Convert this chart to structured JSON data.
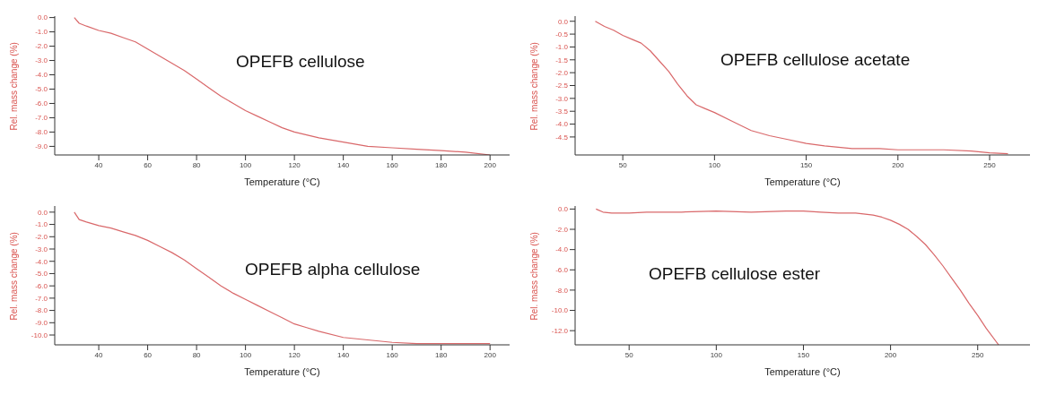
{
  "chart_data": [
    {
      "type": "line",
      "title": "OPEFB cellulose",
      "xlabel": "Temperature (°C)",
      "ylabel": "Rel. mass change (%)",
      "color": "#d9686a",
      "marker": "none",
      "line_style": "solid",
      "grid": false,
      "legend": false,
      "x": [
        30,
        32,
        35,
        40,
        45,
        50,
        55,
        60,
        65,
        70,
        75,
        80,
        85,
        90,
        95,
        100,
        105,
        110,
        115,
        120,
        125,
        130,
        140,
        150,
        160,
        170,
        180,
        190,
        200
      ],
      "values": [
        0,
        -0.4,
        -0.6,
        -0.9,
        -1.1,
        -1.4,
        -1.7,
        -2.2,
        -2.7,
        -3.2,
        -3.7,
        -4.3,
        -4.9,
        -5.5,
        -6.0,
        -6.5,
        -6.9,
        -7.3,
        -7.7,
        -8.0,
        -8.2,
        -8.4,
        -8.7,
        -9.0,
        -9.1,
        -9.2,
        -9.3,
        -9.4,
        -9.6
      ],
      "xlim": [
        22,
        208
      ],
      "xticks": [
        40,
        60,
        80,
        100,
        120,
        140,
        160,
        180,
        200
      ],
      "ylim": [
        -9.6,
        0.1
      ],
      "yticks": [
        {
          "value": 0,
          "label": "0.0"
        },
        {
          "value": -1,
          "label": "-1.0"
        },
        {
          "value": -2,
          "label": "-2.0"
        },
        {
          "value": -3,
          "label": "-3.0"
        },
        {
          "value": -4,
          "label": "-4.0"
        },
        {
          "value": -5,
          "label": "-5.0"
        },
        {
          "value": -6,
          "label": "-6.0"
        },
        {
          "value": -7,
          "label": "-7.0"
        },
        {
          "value": -8,
          "label": "-8.0"
        },
        {
          "value": -9,
          "label": "-9.0"
        }
      ]
    },
    {
      "type": "line",
      "title": "OPEFB cellulose acetate",
      "xlabel": "Temperature (°C)",
      "ylabel": "Rel. mass change (%)",
      "color": "#d9686a",
      "marker": "none",
      "line_style": "solid",
      "grid": false,
      "legend": false,
      "x": [
        35,
        40,
        45,
        50,
        55,
        60,
        65,
        70,
        75,
        80,
        85,
        90,
        95,
        100,
        110,
        120,
        130,
        140,
        150,
        160,
        175,
        190,
        200,
        225,
        240,
        250,
        260
      ],
      "values": [
        0,
        -0.2,
        -0.35,
        -0.55,
        -0.7,
        -0.85,
        -1.15,
        -1.55,
        -1.95,
        -2.45,
        -2.9,
        -3.25,
        -3.4,
        -3.55,
        -3.9,
        -4.25,
        -4.45,
        -4.6,
        -4.75,
        -4.85,
        -4.95,
        -4.95,
        -5.0,
        -5.0,
        -5.05,
        -5.12,
        -5.15
      ],
      "xlim": [
        24,
        272
      ],
      "xticks": [
        50,
        100,
        150,
        200,
        250
      ],
      "ylim": [
        -5.2,
        0.2
      ],
      "yticks": [
        {
          "value": 0,
          "label": "0.0"
        },
        -0.5,
        {
          "value": -1,
          "label": "-1.0"
        },
        -1.5,
        {
          "value": -2,
          "label": "-2.0"
        },
        -2.5,
        {
          "value": -3,
          "label": "-3.0"
        },
        -3.5,
        {
          "value": -4,
          "label": "-4.0"
        },
        -4.5
      ]
    },
    {
      "type": "line",
      "title": "OPEFB alpha cellulose",
      "xlabel": "Temperature (°C)",
      "ylabel": "Rel. mass change (%)",
      "color": "#d9686a",
      "marker": "none",
      "line_style": "solid",
      "grid": false,
      "legend": false,
      "x": [
        30,
        32,
        35,
        40,
        45,
        50,
        55,
        60,
        65,
        70,
        75,
        80,
        85,
        90,
        95,
        100,
        105,
        110,
        115,
        120,
        125,
        130,
        140,
        150,
        160,
        170,
        180,
        200
      ],
      "values": [
        0,
        -0.6,
        -0.8,
        -1.1,
        -1.3,
        -1.6,
        -1.9,
        -2.3,
        -2.8,
        -3.3,
        -3.9,
        -4.6,
        -5.3,
        -6.0,
        -6.6,
        -7.1,
        -7.6,
        -8.1,
        -8.6,
        -9.1,
        -9.4,
        -9.7,
        -10.2,
        -10.4,
        -10.6,
        -10.7,
        -10.7,
        -10.7
      ],
      "xlim": [
        22,
        208
      ],
      "xticks": [
        40,
        60,
        80,
        100,
        120,
        140,
        160,
        180,
        200
      ],
      "ylim": [
        -10.8,
        0.5
      ],
      "yticks": [
        {
          "value": 0,
          "label": "0.0"
        },
        {
          "value": -1,
          "label": "-1.0"
        },
        {
          "value": -2,
          "label": "-2.0"
        },
        {
          "value": -3,
          "label": "-3.0"
        },
        {
          "value": -4,
          "label": "-4.0"
        },
        {
          "value": -5,
          "label": "-5.0"
        },
        {
          "value": -6,
          "label": "-6.0"
        },
        {
          "value": -7,
          "label": "-7.0"
        },
        {
          "value": -8,
          "label": "-8.0"
        },
        {
          "value": -9,
          "label": "-9.0"
        },
        {
          "value": -10,
          "label": "-10.0"
        }
      ]
    },
    {
      "type": "line",
      "title": "OPEFB cellulose ester",
      "xlabel": "Temperature (°C)",
      "ylabel": "Rel. mass change (%)",
      "color": "#d9686a",
      "marker": "none",
      "line_style": "solid",
      "grid": false,
      "legend": false,
      "x": [
        31,
        35,
        40,
        50,
        60,
        80,
        100,
        120,
        140,
        150,
        160,
        170,
        180,
        190,
        195,
        200,
        205,
        210,
        215,
        220,
        225,
        230,
        235,
        240,
        245,
        250,
        255,
        262
      ],
      "values": [
        0,
        -0.3,
        -0.4,
        -0.4,
        -0.3,
        -0.3,
        -0.2,
        -0.3,
        -0.2,
        -0.2,
        -0.3,
        -0.4,
        -0.4,
        -0.6,
        -0.8,
        -1.1,
        -1.5,
        -2.0,
        -2.7,
        -3.5,
        -4.5,
        -5.6,
        -6.8,
        -8.0,
        -9.3,
        -10.5,
        -11.8,
        -13.4
      ],
      "xlim": [
        19,
        280
      ],
      "xticks": [
        50,
        100,
        150,
        200,
        250
      ],
      "ylim": [
        -13.4,
        0.3
      ],
      "yticks": [
        {
          "value": 0,
          "label": "0.0"
        },
        {
          "value": -2,
          "label": "-2.0"
        },
        {
          "value": -4,
          "label": "-4.0"
        },
        {
          "value": -6,
          "label": "-6.0"
        },
        {
          "value": -8,
          "label": "-8.0"
        },
        {
          "value": -10,
          "label": "-10.0"
        },
        {
          "value": -12,
          "label": "-12.0"
        }
      ]
    }
  ]
}
